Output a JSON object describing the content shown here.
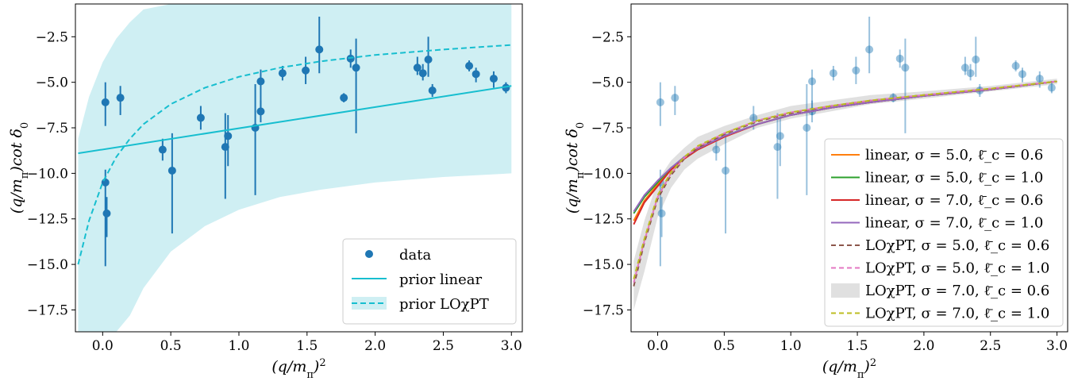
{
  "chart_data": [
    {
      "type": "scatter",
      "xlabel": "(q/m_π)^2",
      "ylabel": "(q/m_π)cot δ_0",
      "xlim": [
        -0.2,
        3.08
      ],
      "ylim": [
        -18.7,
        -0.7
      ],
      "xticks": [
        "0.0",
        "0.5",
        "1.0",
        "1.5",
        "2.0",
        "2.5",
        "3.0"
      ],
      "yticks": [
        "-2.5",
        "-5.0",
        "-7.5",
        "-10.0",
        "-12.5",
        "-15.0",
        "-17.5"
      ],
      "legend_position": "lower right",
      "series": [
        {
          "name": "data",
          "kind": "errorbar",
          "color": "#1f77b4",
          "points": [
            {
              "x": 0.02,
              "y": -6.1,
              "ylo": -7.4,
              "yhi": -5.0
            },
            {
              "x": 0.02,
              "y": -10.5,
              "ylo": -15.1,
              "yhi": -9.8
            },
            {
              "x": 0.03,
              "y": -12.2,
              "ylo": -13.5,
              "yhi": -11.3
            },
            {
              "x": 0.13,
              "y": -5.85,
              "ylo": -6.8,
              "yhi": -5.2
            },
            {
              "x": 0.44,
              "y": -8.7,
              "ylo": -9.3,
              "yhi": -8.1
            },
            {
              "x": 0.51,
              "y": -9.85,
              "ylo": -13.3,
              "yhi": -7.8
            },
            {
              "x": 0.72,
              "y": -6.95,
              "ylo": -7.6,
              "yhi": -6.3
            },
            {
              "x": 0.9,
              "y": -8.55,
              "ylo": -11.4,
              "yhi": -6.7
            },
            {
              "x": 0.92,
              "y": -7.95,
              "ylo": -9.6,
              "yhi": -6.8
            },
            {
              "x": 1.12,
              "y": -7.5,
              "ylo": -11.2,
              "yhi": -5.1
            },
            {
              "x": 1.16,
              "y": -4.95,
              "ylo": -6.8,
              "yhi": -4.3
            },
            {
              "x": 1.16,
              "y": -6.6,
              "ylo": -7.2,
              "yhi": -6.0
            },
            {
              "x": 1.32,
              "y": -4.5,
              "ylo": -4.9,
              "yhi": -4.1
            },
            {
              "x": 1.49,
              "y": -4.35,
              "ylo": -5.1,
              "yhi": -3.6
            },
            {
              "x": 1.59,
              "y": -3.2,
              "ylo": -4.5,
              "yhi": -1.4
            },
            {
              "x": 1.77,
              "y": -5.85,
              "ylo": -6.1,
              "yhi": -5.6
            },
            {
              "x": 1.82,
              "y": -3.7,
              "ylo": -4.2,
              "yhi": -3.2
            },
            {
              "x": 1.86,
              "y": -4.2,
              "ylo": -7.8,
              "yhi": -2.6
            },
            {
              "x": 2.31,
              "y": -4.2,
              "ylo": -4.6,
              "yhi": -3.6
            },
            {
              "x": 2.35,
              "y": -4.5,
              "ylo": -4.9,
              "yhi": -4.0
            },
            {
              "x": 2.39,
              "y": -3.75,
              "ylo": -4.7,
              "yhi": -2.5
            },
            {
              "x": 2.42,
              "y": -5.45,
              "ylo": -5.8,
              "yhi": -5.1
            },
            {
              "x": 2.69,
              "y": -4.1,
              "ylo": -4.4,
              "yhi": -3.8
            },
            {
              "x": 2.74,
              "y": -4.55,
              "ylo": -5.0,
              "yhi": -4.2
            },
            {
              "x": 2.87,
              "y": -4.8,
              "ylo": -5.3,
              "yhi": -4.4
            },
            {
              "x": 2.96,
              "y": -5.3,
              "ylo": -5.6,
              "yhi": -5.0
            }
          ]
        },
        {
          "name": "prior linear",
          "kind": "line",
          "color": "#17becf",
          "x": [
            -0.18,
            3.0
          ],
          "y": [
            -8.9,
            -5.2
          ]
        },
        {
          "name": "prior LOχPT",
          "kind": "line-band",
          "color": "#17becf",
          "band_color": "#cfeff3",
          "x": [
            -0.18,
            -0.1,
            0.0,
            0.1,
            0.2,
            0.3,
            0.5,
            0.75,
            1.0,
            1.3,
            1.6,
            2.0,
            2.5,
            3.0
          ],
          "y": [
            -15.0,
            -12.6,
            -10.5,
            -9.1,
            -8.1,
            -7.3,
            -6.2,
            -5.3,
            -4.7,
            -4.2,
            -3.85,
            -3.5,
            -3.2,
            -2.95
          ],
          "band_upper": [
            -8.1,
            -5.8,
            -3.9,
            -2.6,
            -1.7,
            -1.0,
            -0.7,
            -0.7,
            -0.7,
            -0.7,
            -0.7,
            -0.7,
            -0.7,
            -0.7
          ],
          "band_lower": [
            -18.7,
            -18.7,
            -18.7,
            -18.7,
            -17.8,
            -16.3,
            -14.3,
            -12.9,
            -12.0,
            -11.3,
            -10.9,
            -10.5,
            -10.2,
            -10.0
          ]
        }
      ]
    },
    {
      "type": "line",
      "xlabel": "(q/m_π)^2",
      "ylabel": "(q/m_π)cot δ_0",
      "xlim": [
        -0.2,
        3.08
      ],
      "ylim": [
        -18.7,
        -0.7
      ],
      "xticks": [
        "0.0",
        "0.5",
        "1.0",
        "1.5",
        "2.0",
        "2.5",
        "3.0"
      ],
      "yticks": [
        "-2.5",
        "-5.0",
        "-7.5",
        "-10.0",
        "-12.5",
        "-15.0",
        "-17.5"
      ],
      "legend_position": "lower right",
      "x": [
        -0.18,
        -0.1,
        0.0,
        0.1,
        0.2,
        0.3,
        0.5,
        0.75,
        1.0,
        1.3,
        1.6,
        2.0,
        2.5,
        3.0
      ],
      "band": {
        "upper": [
          -14.8,
          -12.6,
          -10.4,
          -9.3,
          -8.6,
          -8.0,
          -7.4,
          -6.8,
          -6.3,
          -6.0,
          -5.7,
          -5.5,
          -5.2,
          -4.8
        ],
        "lower": [
          -17.5,
          -15.4,
          -12.4,
          -10.8,
          -9.8,
          -9.2,
          -8.4,
          -7.5,
          -7.0,
          -6.6,
          -6.2,
          -5.9,
          -5.5,
          -5.1
        ]
      },
      "series": [
        {
          "name": "linear, σ = 5.0, ℓ̄_c = 0.6",
          "color": "#ff7f0e",
          "dash": false,
          "y": [
            -12.6,
            -11.5,
            -10.6,
            -9.8,
            -9.2,
            -8.7,
            -8.0,
            -7.3,
            -6.8,
            -6.4,
            -6.1,
            -5.75,
            -5.4,
            -4.95
          ]
        },
        {
          "name": "linear, σ = 5.0, ℓ̄_c = 1.0",
          "color": "#2ca02c",
          "dash": false,
          "y": [
            -12.2,
            -11.3,
            -10.5,
            -9.7,
            -9.15,
            -8.65,
            -7.95,
            -7.3,
            -6.8,
            -6.4,
            -6.1,
            -5.75,
            -5.4,
            -4.95
          ]
        },
        {
          "name": "linear, σ = 7.0, ℓ̄_c = 0.6",
          "color": "#d62728",
          "dash": false,
          "y": [
            -12.8,
            -11.6,
            -10.7,
            -9.8,
            -9.2,
            -8.7,
            -8.0,
            -7.3,
            -6.8,
            -6.4,
            -6.1,
            -5.75,
            -5.4,
            -4.95
          ]
        },
        {
          "name": "linear, σ = 7.0, ℓ̄_c = 1.0",
          "color": "#9467bd",
          "dash": false,
          "y": [
            -12.1,
            -11.2,
            -10.4,
            -9.7,
            -9.1,
            -8.65,
            -7.95,
            -7.3,
            -6.8,
            -6.4,
            -6.1,
            -5.75,
            -5.4,
            -4.95
          ]
        },
        {
          "name": "LOχPT, σ = 5.0, ℓ̄_c = 0.6",
          "color": "#8c564b",
          "dash": true,
          "y": [
            -16.2,
            -13.8,
            -11.4,
            -10.1,
            -9.2,
            -8.6,
            -7.85,
            -7.15,
            -6.7,
            -6.3,
            -6.0,
            -5.7,
            -5.35,
            -4.95
          ]
        },
        {
          "name": "LOχPT, σ = 5.0, ℓ̄_c = 1.0",
          "color": "#e377c2",
          "dash": true,
          "y": [
            -16.0,
            -13.7,
            -11.3,
            -10.0,
            -9.15,
            -8.55,
            -7.8,
            -7.1,
            -6.65,
            -6.3,
            -6.0,
            -5.7,
            -5.35,
            -4.95
          ]
        },
        {
          "name": "LOχPT, σ = 7.0, ℓ̄_c = 0.6",
          "color": "#e0e0e0",
          "dash": false,
          "band_entry": true,
          "y": null
        },
        {
          "name": "LOχPT, σ = 7.0, ℓ̄_c = 1.0",
          "color": "#bcbd22",
          "dash": true,
          "y": [
            -15.8,
            -13.6,
            -11.2,
            -9.95,
            -9.1,
            -8.5,
            -7.8,
            -7.1,
            -6.65,
            -6.3,
            -6.0,
            -5.7,
            -5.35,
            -4.95
          ]
        }
      ],
      "points_faded": true
    }
  ]
}
